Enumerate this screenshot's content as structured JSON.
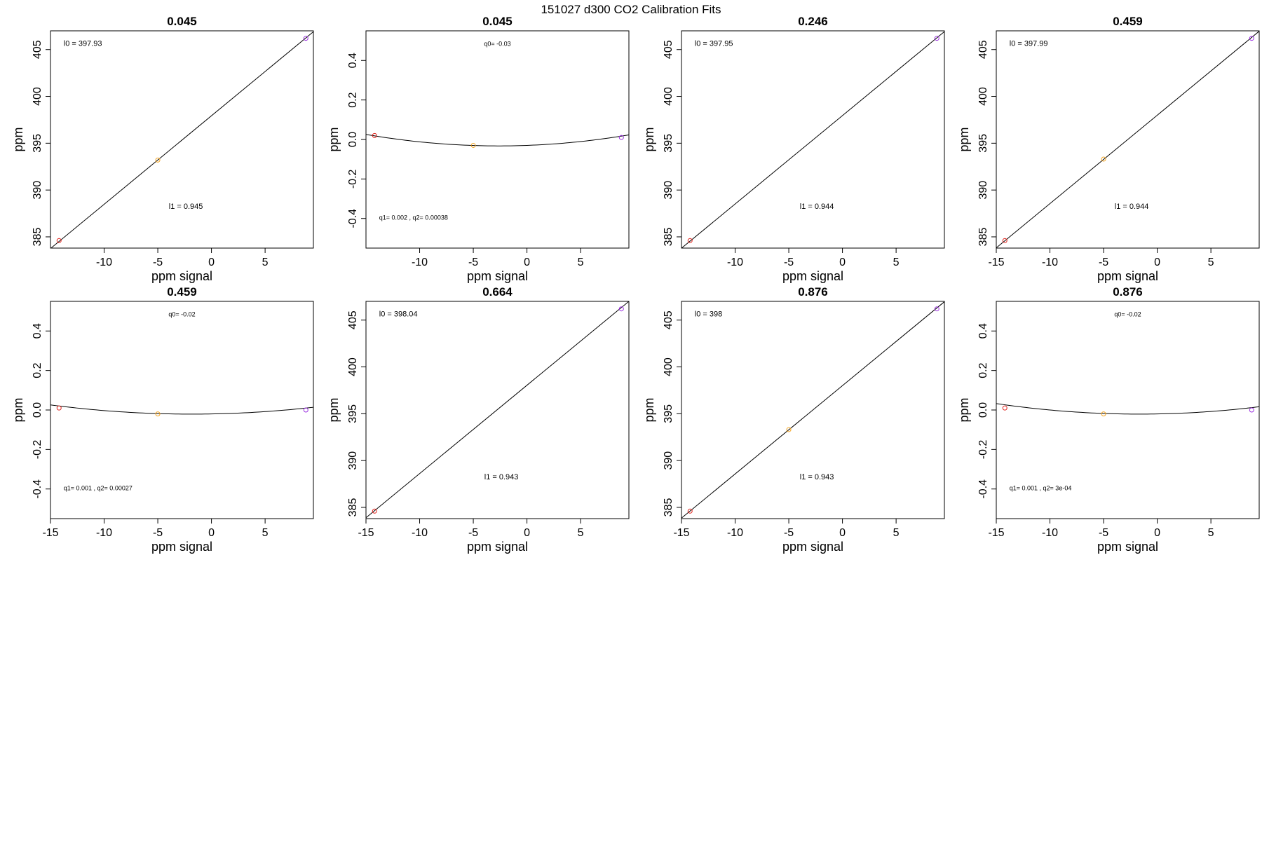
{
  "figure": {
    "main_title": "151027   d300   CO2 Calibration Fits"
  },
  "chart_data": [
    {
      "type": "scatter",
      "fit": "linear",
      "title": "0.045",
      "xlabel": "ppm signal",
      "ylabel": "ppm",
      "xlim": [
        -15,
        9.5
      ],
      "ylim": [
        383.8,
        407
      ],
      "xticks": [
        "-10",
        "-5",
        "0",
        "5"
      ],
      "yticks": [
        "385",
        "390",
        "395",
        "400",
        "405"
      ],
      "points": [
        [
          -14.2,
          384.6,
          "#e0201a"
        ],
        [
          -5,
          393.2,
          "#f5a623"
        ],
        [
          8.8,
          406.2,
          "#9b30e0"
        ]
      ],
      "line": {
        "intercept": 397.93,
        "slope": 0.945
      },
      "annotations": [
        {
          "text": "l0 =  397.93",
          "ax": 0.05,
          "ay": 0.93
        },
        {
          "text": "l1 =  0.945",
          "ax": 0.45,
          "ay": 0.18
        }
      ]
    },
    {
      "type": "scatter",
      "fit": "quadratic",
      "title": "0.045",
      "xlabel": "ppm signal",
      "ylabel": "ppm",
      "xlim": [
        -15,
        9.5
      ],
      "ylim": [
        -0.55,
        0.55
      ],
      "xticks": [
        "-10",
        "-5",
        "0",
        "5"
      ],
      "yticks": [
        "-0.4",
        "-0.2",
        "0.0",
        "0.2",
        "0.4"
      ],
      "points": [
        [
          -14.2,
          0.02,
          "#e0201a"
        ],
        [
          -5,
          -0.03,
          "#f5a623"
        ],
        [
          8.8,
          0.01,
          "#9b30e0"
        ]
      ],
      "curve": {
        "q0": -0.03,
        "q1": 0.002,
        "q2": 0.00038
      },
      "annotations": [
        {
          "text": "q0= -0.03",
          "ax": 0.5,
          "ay": 0.93,
          "small": true,
          "center": true
        },
        {
          "text": "q1= 0.002 , q2= 0.00038",
          "ax": 0.05,
          "ay": 0.13,
          "small": true
        }
      ]
    },
    {
      "type": "scatter",
      "fit": "linear",
      "title": "0.246",
      "xlabel": "ppm signal",
      "ylabel": "ppm",
      "xlim": [
        -15,
        9.5
      ],
      "ylim": [
        383.8,
        407
      ],
      "xticks": [
        "-10",
        "-5",
        "0",
        "5"
      ],
      "yticks": [
        "385",
        "390",
        "395",
        "400",
        "405"
      ],
      "points": [
        [
          -14.2,
          384.6,
          "#e0201a"
        ],
        [
          8.8,
          406.2,
          "#9b30e0"
        ]
      ],
      "line": {
        "intercept": 397.95,
        "slope": 0.944
      },
      "annotations": [
        {
          "text": "l0 =  397.95",
          "ax": 0.05,
          "ay": 0.93
        },
        {
          "text": "l1 =  0.944",
          "ax": 0.45,
          "ay": 0.18
        }
      ]
    },
    {
      "type": "scatter",
      "fit": "linear",
      "title": "0.459",
      "xlabel": "ppm signal",
      "ylabel": "ppm",
      "xlim": [
        -15,
        9.5
      ],
      "ylim": [
        383.8,
        407
      ],
      "xticks": [
        "-15",
        "-10",
        "-5",
        "0",
        "5"
      ],
      "yticks": [
        "385",
        "390",
        "395",
        "400",
        "405"
      ],
      "points": [
        [
          -14.2,
          384.6,
          "#e0201a"
        ],
        [
          -5,
          393.3,
          "#f5a623"
        ],
        [
          8.8,
          406.2,
          "#9b30e0"
        ]
      ],
      "line": {
        "intercept": 397.99,
        "slope": 0.944
      },
      "annotations": [
        {
          "text": "l0 =  397.99",
          "ax": 0.05,
          "ay": 0.93
        },
        {
          "text": "l1 =  0.944",
          "ax": 0.45,
          "ay": 0.18
        }
      ]
    },
    {
      "type": "scatter",
      "fit": "quadratic",
      "title": "0.459",
      "xlabel": "ppm signal",
      "ylabel": "ppm",
      "xlim": [
        -15,
        9.5
      ],
      "ylim": [
        -0.55,
        0.55
      ],
      "xticks": [
        "-15",
        "-10",
        "-5",
        "0",
        "5"
      ],
      "yticks": [
        "-0.4",
        "-0.2",
        "0.0",
        "0.2",
        "0.4"
      ],
      "points": [
        [
          -14.2,
          0.01,
          "#e0201a"
        ],
        [
          -5,
          -0.02,
          "#f5a623"
        ],
        [
          8.8,
          0.0,
          "#9b30e0"
        ]
      ],
      "curve": {
        "q0": -0.02,
        "q1": 0.001,
        "q2": 0.00027
      },
      "annotations": [
        {
          "text": "q0= -0.02",
          "ax": 0.5,
          "ay": 0.93,
          "small": true,
          "center": true
        },
        {
          "text": "q1= 0.001 , q2= 0.00027",
          "ax": 0.05,
          "ay": 0.13,
          "small": true
        }
      ]
    },
    {
      "type": "scatter",
      "fit": "linear",
      "title": "0.664",
      "xlabel": "ppm signal",
      "ylabel": "ppm",
      "xlim": [
        -15,
        9.5
      ],
      "ylim": [
        383.8,
        407
      ],
      "xticks": [
        "-15",
        "-10",
        "-5",
        "0",
        "5"
      ],
      "yticks": [
        "385",
        "390",
        "395",
        "400",
        "405"
      ],
      "points": [
        [
          -14.2,
          384.6,
          "#e0201a"
        ],
        [
          8.8,
          406.2,
          "#9b30e0"
        ]
      ],
      "line": {
        "intercept": 398.04,
        "slope": 0.943
      },
      "annotations": [
        {
          "text": "l0 =  398.04",
          "ax": 0.05,
          "ay": 0.93
        },
        {
          "text": "l1 =  0.943",
          "ax": 0.45,
          "ay": 0.18
        }
      ]
    },
    {
      "type": "scatter",
      "fit": "linear",
      "title": "0.876",
      "xlabel": "ppm signal",
      "ylabel": "ppm",
      "xlim": [
        -15,
        9.5
      ],
      "ylim": [
        383.8,
        407
      ],
      "xticks": [
        "-15",
        "-10",
        "-5",
        "0",
        "5"
      ],
      "yticks": [
        "385",
        "390",
        "395",
        "400",
        "405"
      ],
      "points": [
        [
          -14.2,
          384.6,
          "#e0201a"
        ],
        [
          -5,
          393.3,
          "#f5a623"
        ],
        [
          8.8,
          406.2,
          "#9b30e0"
        ]
      ],
      "line": {
        "intercept": 398.0,
        "slope": 0.943
      },
      "annotations": [
        {
          "text": "l0 =  398",
          "ax": 0.05,
          "ay": 0.93
        },
        {
          "text": "l1 =  0.943",
          "ax": 0.45,
          "ay": 0.18
        }
      ]
    },
    {
      "type": "scatter",
      "fit": "quadratic",
      "title": "0.876",
      "xlabel": "ppm signal",
      "ylabel": "ppm",
      "xlim": [
        -15,
        9.5
      ],
      "ylim": [
        -0.55,
        0.55
      ],
      "xticks": [
        "-15",
        "-10",
        "-5",
        "0",
        "5"
      ],
      "yticks": [
        "-0.4",
        "-0.2",
        "0.0",
        "0.2",
        "0.4"
      ],
      "points": [
        [
          -14.2,
          0.01,
          "#e0201a"
        ],
        [
          -5,
          -0.02,
          "#f5a623"
        ],
        [
          8.8,
          0.0,
          "#9b30e0"
        ]
      ],
      "curve": {
        "q0": -0.02,
        "q1": 0.001,
        "q2": 0.0003
      },
      "annotations": [
        {
          "text": "q0= -0.02",
          "ax": 0.5,
          "ay": 0.93,
          "small": true,
          "center": true
        },
        {
          "text": "q1= 0.001 , q2= 3e-04",
          "ax": 0.05,
          "ay": 0.13,
          "small": true
        }
      ]
    }
  ]
}
